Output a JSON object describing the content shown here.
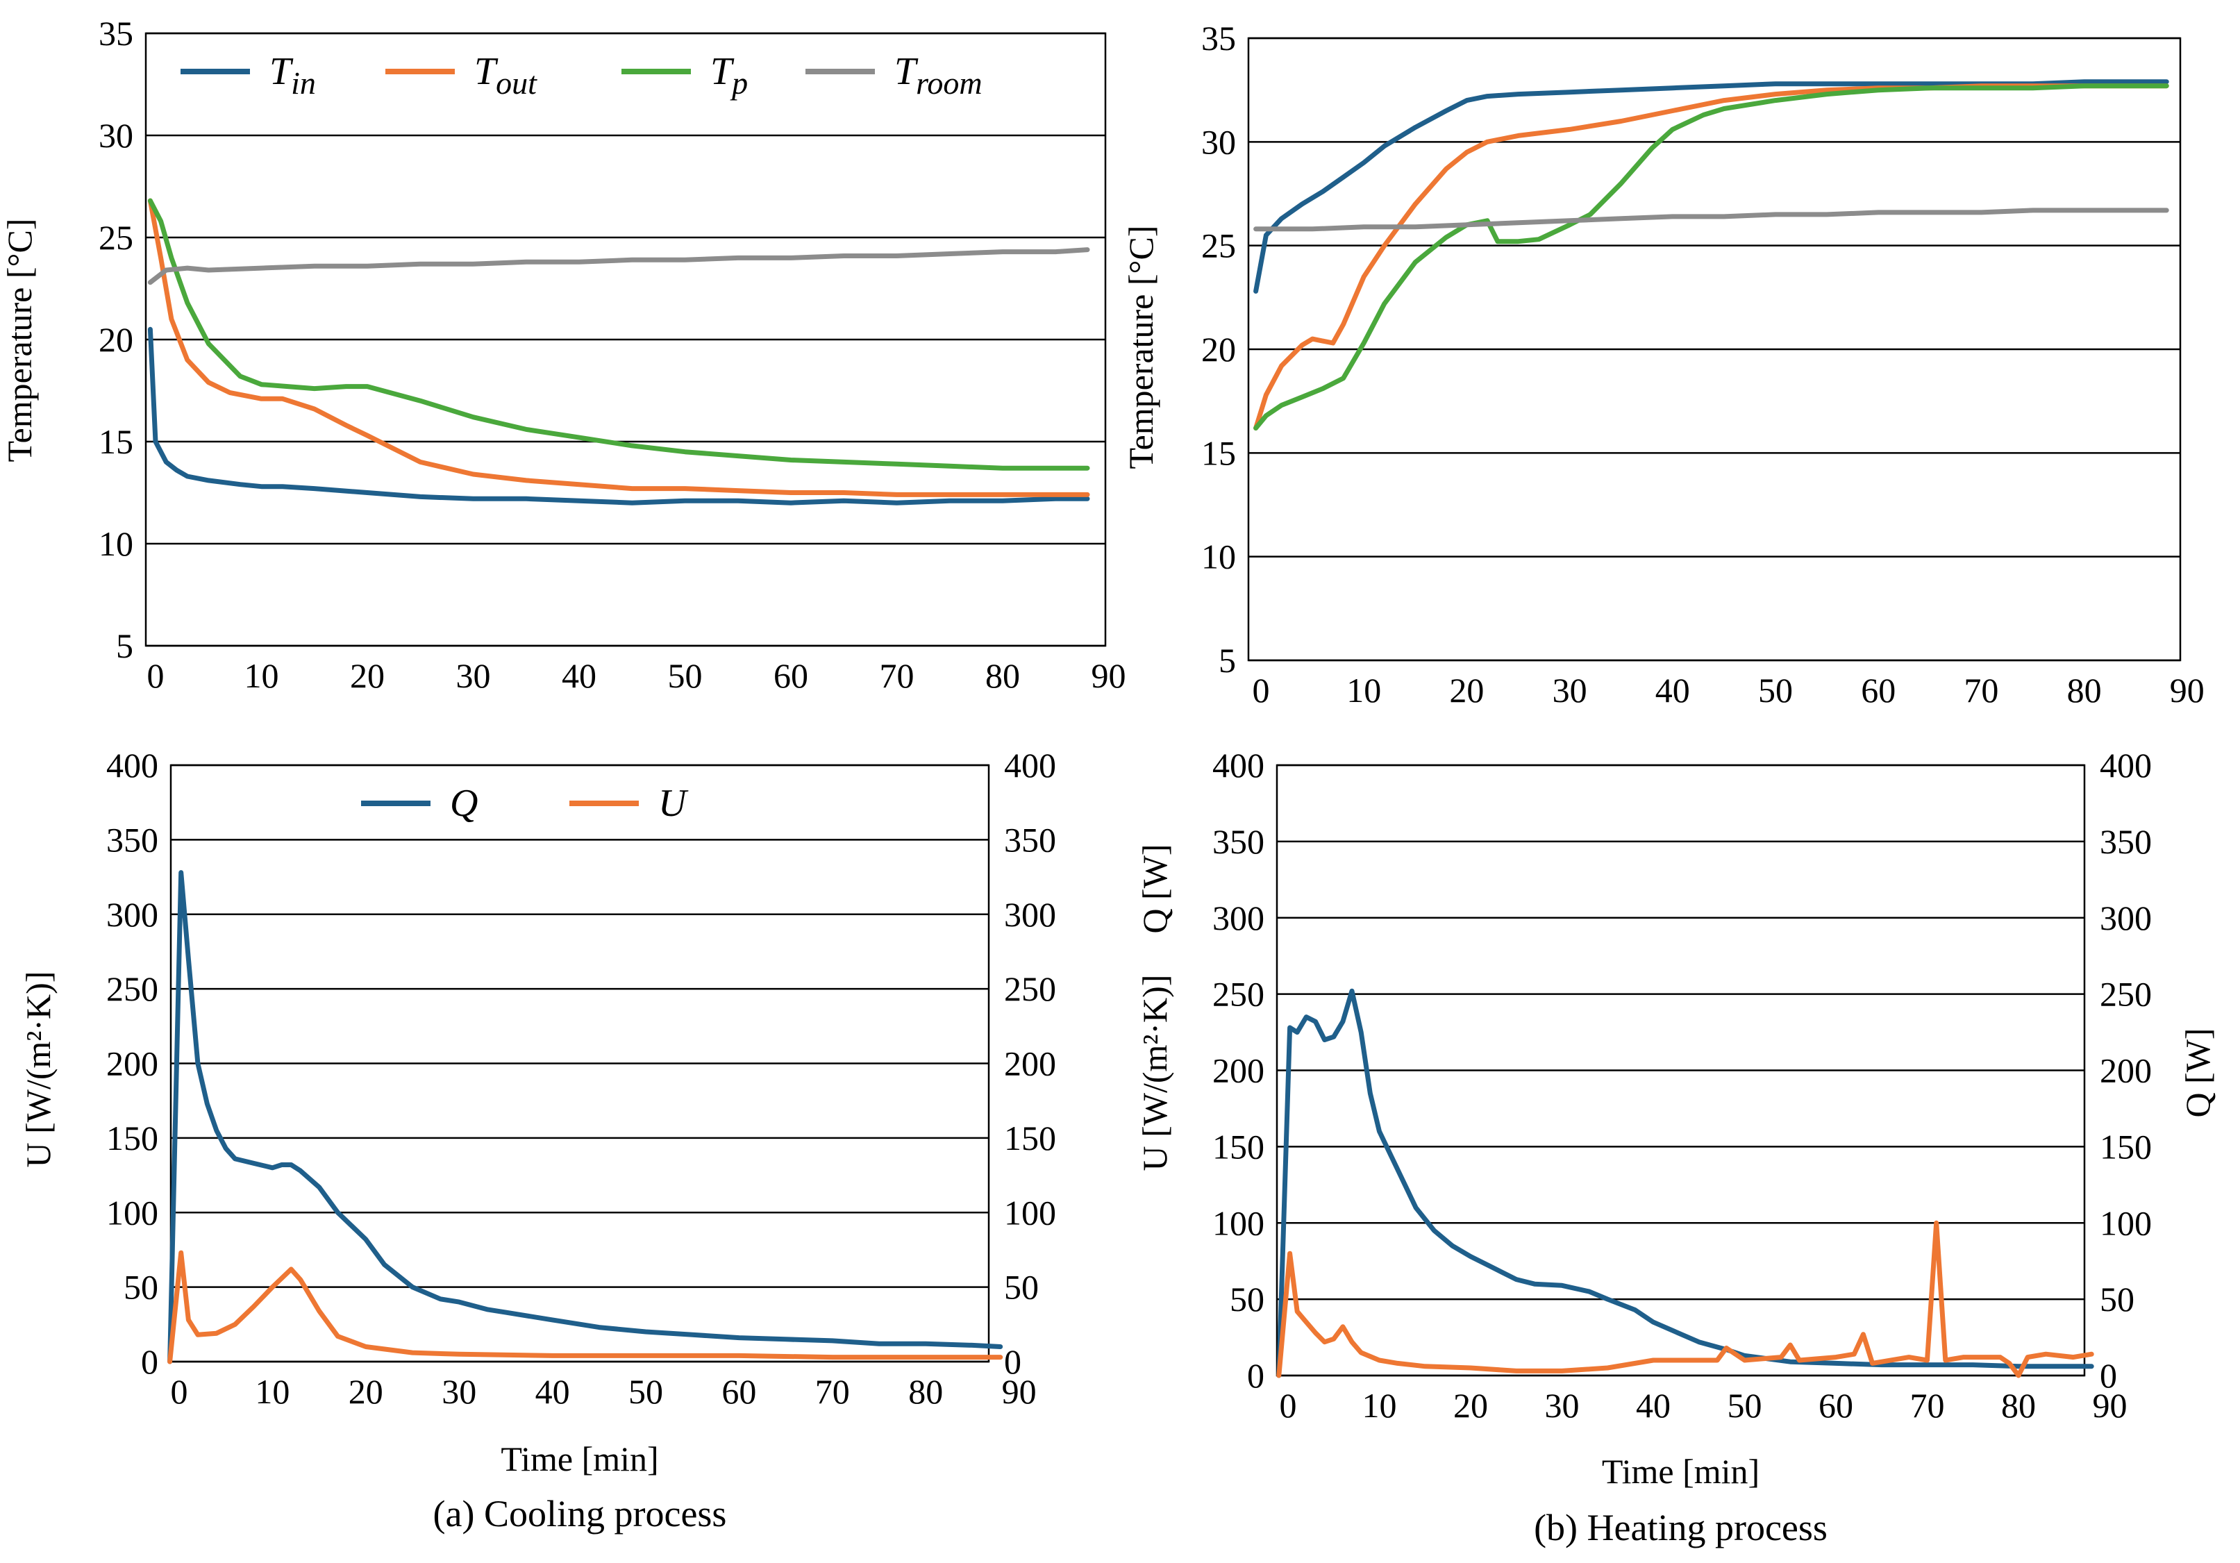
{
  "chart_data": [
    {
      "id": "cool-temp",
      "type": "line",
      "xlabel": "",
      "ylabel": "Temperature  [°C]",
      "ylabel_right": "",
      "xlim": [
        0,
        90
      ],
      "ylim": [
        5,
        35
      ],
      "xticks": [
        "0",
        "10",
        "20",
        "30",
        "40",
        "50",
        "60",
        "70",
        "80",
        "90"
      ],
      "yticks": [
        "5",
        "10",
        "15",
        "20",
        "25",
        "30",
        "35"
      ],
      "legend": "top",
      "series": [
        {
          "name": "Tin",
          "sym": "T",
          "sub": "in",
          "color": "#1f5f8b",
          "x": [
            -0.5,
            0,
            1,
            2,
            3,
            5,
            8,
            10,
            12,
            15,
            20,
            25,
            30,
            35,
            40,
            45,
            50,
            55,
            60,
            65,
            70,
            75,
            80,
            85,
            88
          ],
          "y": [
            20.5,
            15,
            14,
            13.6,
            13.3,
            13.1,
            12.9,
            12.8,
            12.8,
            12.7,
            12.5,
            12.3,
            12.2,
            12.2,
            12.1,
            12.0,
            12.1,
            12.1,
            12.0,
            12.1,
            12.0,
            12.1,
            12.1,
            12.2,
            12.2
          ]
        },
        {
          "name": "Tout",
          "sym": "T",
          "sub": "out",
          "color": "#ee7733",
          "x": [
            -0.5,
            0.5,
            1.5,
            3,
            5,
            7,
            10,
            12,
            15,
            18,
            20,
            25,
            30,
            35,
            40,
            45,
            50,
            55,
            60,
            65,
            70,
            75,
            80,
            85,
            88
          ],
          "y": [
            26.8,
            24,
            21,
            19,
            17.9,
            17.4,
            17.1,
            17.1,
            16.6,
            15.8,
            15.3,
            14,
            13.4,
            13.1,
            12.9,
            12.7,
            12.7,
            12.6,
            12.5,
            12.5,
            12.4,
            12.4,
            12.4,
            12.4,
            12.4
          ]
        },
        {
          "name": "Tp",
          "sym": "T",
          "sub": "p",
          "color": "#4aa83c",
          "x": [
            -0.5,
            0.5,
            1.5,
            3,
            5,
            8,
            10,
            15,
            18,
            20,
            25,
            30,
            35,
            40,
            45,
            50,
            55,
            60,
            65,
            70,
            75,
            80,
            85,
            88
          ],
          "y": [
            26.8,
            25.8,
            24,
            21.8,
            19.8,
            18.2,
            17.8,
            17.6,
            17.7,
            17.7,
            17.0,
            16.2,
            15.6,
            15.2,
            14.8,
            14.5,
            14.3,
            14.1,
            14.0,
            13.9,
            13.8,
            13.7,
            13.7,
            13.7
          ]
        },
        {
          "name": "Troom",
          "sym": "T",
          "sub": "room",
          "color": "#8c8c8c",
          "x": [
            -0.5,
            1,
            3,
            5,
            10,
            15,
            20,
            25,
            30,
            35,
            40,
            45,
            50,
            55,
            60,
            65,
            70,
            75,
            80,
            85,
            88
          ],
          "y": [
            22.8,
            23.4,
            23.5,
            23.4,
            23.5,
            23.6,
            23.6,
            23.7,
            23.7,
            23.8,
            23.8,
            23.9,
            23.9,
            24.0,
            24.0,
            24.1,
            24.1,
            24.2,
            24.3,
            24.3,
            24.4
          ]
        }
      ]
    },
    {
      "id": "heat-temp",
      "type": "line",
      "xlabel": "",
      "ylabel": "Temperature  [°C]",
      "ylabel_right": "",
      "xlim": [
        0,
        90
      ],
      "ylim": [
        5,
        35
      ],
      "xticks": [
        "0",
        "10",
        "20",
        "30",
        "40",
        "50",
        "60",
        "70",
        "80",
        "90"
      ],
      "yticks": [
        "5",
        "10",
        "15",
        "20",
        "25",
        "30",
        "35"
      ],
      "legend": "none",
      "series": [
        {
          "name": "Tin",
          "color": "#1f5f8b",
          "x": [
            -0.5,
            0.5,
            2,
            4,
            6,
            8,
            10,
            12,
            15,
            18,
            20,
            22,
            25,
            30,
            35,
            40,
            45,
            50,
            55,
            60,
            65,
            70,
            75,
            80,
            85,
            88
          ],
          "y": [
            22.8,
            25.5,
            26.3,
            27,
            27.6,
            28.3,
            29,
            29.8,
            30.7,
            31.5,
            32,
            32.2,
            32.3,
            32.4,
            32.5,
            32.6,
            32.7,
            32.8,
            32.8,
            32.8,
            32.8,
            32.8,
            32.8,
            32.9,
            32.9,
            32.9
          ]
        },
        {
          "name": "Tout",
          "color": "#ee7733",
          "x": [
            -0.5,
            0.5,
            2,
            4,
            5,
            7,
            8,
            10,
            12,
            15,
            18,
            20,
            22,
            25,
            30,
            35,
            40,
            45,
            50,
            55,
            60,
            65,
            70,
            75,
            80,
            85,
            88
          ],
          "y": [
            16.2,
            17.8,
            19.2,
            20.2,
            20.5,
            20.3,
            21.2,
            23.5,
            25,
            27,
            28.7,
            29.5,
            30,
            30.3,
            30.6,
            31,
            31.5,
            32,
            32.3,
            32.5,
            32.6,
            32.6,
            32.7,
            32.7,
            32.7,
            32.7,
            32.7
          ]
        },
        {
          "name": "Tp",
          "color": "#4aa83c",
          "x": [
            -0.5,
            0.5,
            2,
            4,
            6,
            8,
            10,
            12,
            15,
            18,
            20,
            22,
            23,
            25,
            27,
            30,
            32,
            35,
            38,
            40,
            43,
            45,
            50,
            55,
            60,
            65,
            70,
            75,
            80,
            85,
            88
          ],
          "y": [
            16.2,
            16.8,
            17.3,
            17.7,
            18.1,
            18.6,
            20.3,
            22.2,
            24.2,
            25.4,
            26,
            26.2,
            25.2,
            25.2,
            25.3,
            26,
            26.5,
            28,
            29.7,
            30.6,
            31.3,
            31.6,
            32,
            32.3,
            32.5,
            32.6,
            32.6,
            32.6,
            32.7,
            32.7,
            32.7
          ]
        },
        {
          "name": "Troom",
          "color": "#8c8c8c",
          "x": [
            -0.5,
            5,
            10,
            15,
            20,
            25,
            30,
            35,
            40,
            45,
            50,
            55,
            60,
            65,
            70,
            75,
            80,
            85,
            88
          ],
          "y": [
            25.8,
            25.8,
            25.9,
            25.9,
            26.0,
            26.1,
            26.2,
            26.3,
            26.4,
            26.4,
            26.5,
            26.5,
            26.6,
            26.6,
            26.6,
            26.7,
            26.7,
            26.7,
            26.7
          ]
        }
      ]
    },
    {
      "id": "cool-qu",
      "type": "line",
      "xlabel": "Time [min]",
      "ylabel": "U [W/(m²·K)]",
      "ylabel_right": "",
      "xlim": [
        -2,
        90
      ],
      "ylim": [
        0,
        400
      ],
      "xticks": [
        "0",
        "10",
        "20",
        "30",
        "40",
        "50",
        "60",
        "70",
        "80",
        "90"
      ],
      "yticks": [
        "0",
        "50",
        "100",
        "150",
        "200",
        "250",
        "300",
        "350",
        "400"
      ],
      "yticks_right": [
        "0",
        "50",
        "100",
        "150",
        "200",
        "250",
        "300",
        "350",
        "400"
      ],
      "legend": "top",
      "caption": "(a) Cooling process",
      "series": [
        {
          "name": "Q",
          "sym": "Q",
          "sub": "",
          "color": "#1f5f8b",
          "x": [
            -1,
            0.2,
            1,
            2,
            3,
            4,
            5,
            6,
            8,
            10,
            11,
            12,
            13,
            15,
            17,
            20,
            22,
            25,
            28,
            30,
            33,
            35,
            40,
            45,
            50,
            55,
            60,
            65,
            70,
            75,
            80,
            85,
            88
          ],
          "y": [
            0,
            328,
            270,
            200,
            173,
            155,
            143,
            136,
            133,
            130,
            132,
            132,
            128,
            117,
            100,
            82,
            65,
            50,
            42,
            40,
            35,
            33,
            28,
            23,
            20,
            18,
            16,
            15,
            14,
            12,
            12,
            11,
            10
          ]
        },
        {
          "name": "U",
          "sym": "U",
          "sub": "",
          "color": "#ee7733",
          "x": [
            -1,
            0.2,
            1,
            2,
            4,
            6,
            8,
            10,
            12,
            13,
            15,
            17,
            20,
            25,
            30,
            40,
            50,
            60,
            70,
            80,
            88
          ],
          "y": [
            0,
            73,
            28,
            18,
            19,
            25,
            37,
            50,
            62,
            55,
            34,
            17,
            10,
            6,
            5,
            4,
            4,
            4,
            3,
            3,
            3
          ]
        }
      ]
    },
    {
      "id": "heat-qu",
      "type": "line",
      "xlabel": "Time [min]",
      "ylabel": "U [W/(m²·K)]",
      "ylabel2": "Q [W]",
      "ylabel_right": "Q [W]",
      "xlim": [
        -2,
        90
      ],
      "ylim": [
        0,
        400
      ],
      "xticks": [
        "0",
        "10",
        "20",
        "30",
        "40",
        "50",
        "60",
        "70",
        "80",
        "90"
      ],
      "yticks": [
        "0",
        "50",
        "100",
        "150",
        "200",
        "250",
        "300",
        "350",
        "400"
      ],
      "yticks_right": [
        "0",
        "50",
        "100",
        "150",
        "200",
        "250",
        "300",
        "350",
        "400"
      ],
      "legend": "none",
      "caption": "(b) Heating process",
      "series": [
        {
          "name": "Q",
          "color": "#1f5f8b",
          "x": [
            -1,
            0.2,
            1,
            2,
            3,
            4,
            5,
            6,
            7,
            8,
            9,
            10,
            12,
            14,
            16,
            18,
            20,
            22,
            25,
            27,
            30,
            33,
            35,
            38,
            40,
            45,
            48,
            50,
            55,
            60,
            65,
            70,
            75,
            80,
            85,
            88
          ],
          "y": [
            0,
            228,
            225,
            235,
            232,
            220,
            222,
            232,
            252,
            225,
            185,
            160,
            135,
            110,
            95,
            85,
            78,
            72,
            63,
            60,
            59,
            55,
            50,
            43,
            35,
            22,
            17,
            13,
            9,
            8,
            7,
            7,
            7,
            6,
            6,
            6
          ]
        },
        {
          "name": "U",
          "color": "#ee7733",
          "x": [
            -1,
            0.2,
            1,
            2,
            3,
            4,
            5,
            6,
            7,
            8,
            10,
            12,
            15,
            20,
            25,
            30,
            35,
            40,
            45,
            47,
            48,
            50,
            54,
            55,
            56,
            60,
            62,
            63,
            64,
            68,
            70,
            71,
            72,
            74,
            78,
            79,
            80,
            81,
            83,
            86,
            88
          ],
          "y": [
            0,
            80,
            42,
            35,
            28,
            22,
            24,
            32,
            22,
            15,
            10,
            8,
            6,
            5,
            3,
            3,
            5,
            10,
            10,
            10,
            18,
            10,
            12,
            20,
            10,
            12,
            14,
            27,
            8,
            12,
            10,
            100,
            10,
            12,
            12,
            8,
            0,
            12,
            14,
            12,
            14
          ]
        }
      ]
    }
  ]
}
